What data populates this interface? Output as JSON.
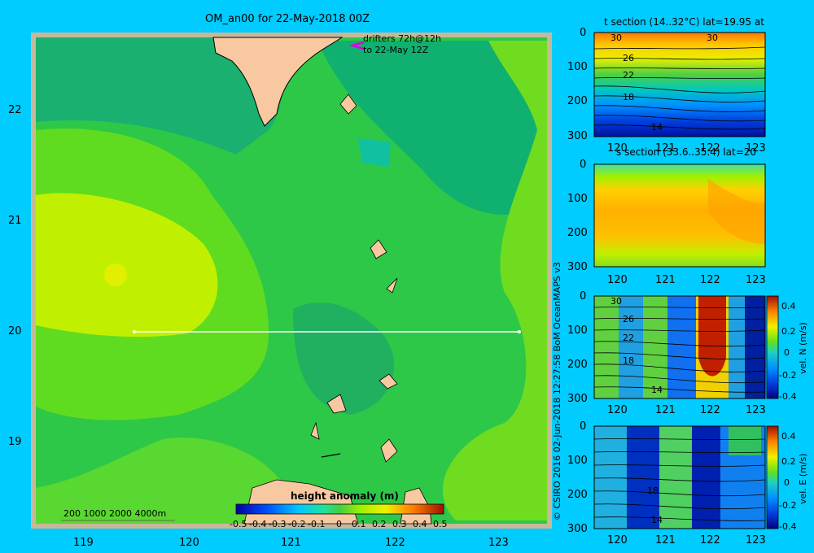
{
  "main_map": {
    "title": "OM_an00 for 22-May-2018 00Z",
    "drifters_line1": "drifters 72h@12h",
    "drifters_line2": "to 22-May 12Z",
    "lat_ticks": [
      "22",
      "21",
      "20",
      "19"
    ],
    "lon_ticks": [
      "119",
      "120",
      "121",
      "122",
      "123"
    ],
    "depth_legend": "200  1000  2000  4000m",
    "colorbar_title": "height anomaly  (m)",
    "colorbar_ticks": [
      "-0.5",
      "-0.4",
      "-0.3",
      "-0.2",
      "-0.1",
      "0",
      "0.1",
      "0.2",
      "0.3",
      "0.4",
      "0.5"
    ]
  },
  "side_panels": {
    "credit": "© CSIRO 2016   02-Jun-2018 12:27:58 BoM OceanMAPS v3",
    "panel1_title": "t section (14..32°C) lat=19.95 at",
    "panel2_title": "s section (33.6..35.4) lat=20",
    "panel3_label": "vel. N  (m/s)",
    "panel4_label": "vel. E  (m/s)",
    "depth_ticks": [
      "0",
      "100",
      "200",
      "300"
    ],
    "lon_ticks": [
      "120",
      "121",
      "122",
      "123"
    ],
    "vel_ticks": [
      "0.4",
      "0.2",
      "0",
      "-0.2",
      "-0.4"
    ],
    "t_contour_labels": [
      "30",
      "26",
      "22",
      "18",
      "14",
      "30"
    ],
    "vn_contour_labels": [
      "30",
      "26",
      "22",
      "18",
      "14"
    ],
    "ve_contour_labels": [
      "18",
      "14"
    ]
  },
  "chart_data": [
    {
      "type": "heatmap",
      "title": "OM_an00 for 22-May-2018 00Z",
      "xlabel": "",
      "ylabel": "",
      "xlim": [
        118.5,
        123.5
      ],
      "ylim": [
        18.25,
        22.75
      ],
      "colorbar": {
        "label": "height anomaly (m)",
        "range": [
          -0.5,
          0.5
        ]
      },
      "section_line": {
        "lat": 20,
        "lon": [
          119.5,
          123.2
        ]
      }
    },
    {
      "type": "heatmap",
      "title": "t section (14..32°C) lat=19.95 at",
      "xlim": [
        119.6,
        123.2
      ],
      "ylim": [
        300,
        0
      ],
      "contour_labels": [
        30,
        26,
        22,
        18,
        14
      ]
    },
    {
      "type": "heatmap",
      "title": "s section (33.6..35.4) lat=20",
      "xlim": [
        119.6,
        123.2
      ],
      "ylim": [
        300,
        0
      ]
    },
    {
      "type": "heatmap",
      "title": "",
      "colorbar_label": "vel. N (m/s)",
      "colorbar_range": [
        -0.4,
        0.4
      ],
      "xlim": [
        119.6,
        123.2
      ],
      "ylim": [
        300,
        0
      ]
    },
    {
      "type": "heatmap",
      "title": "",
      "colorbar_label": "vel. E (m/s)",
      "colorbar_range": [
        -0.4,
        0.4
      ],
      "xlim": [
        119.6,
        123.2
      ],
      "ylim": [
        300,
        0
      ]
    }
  ]
}
